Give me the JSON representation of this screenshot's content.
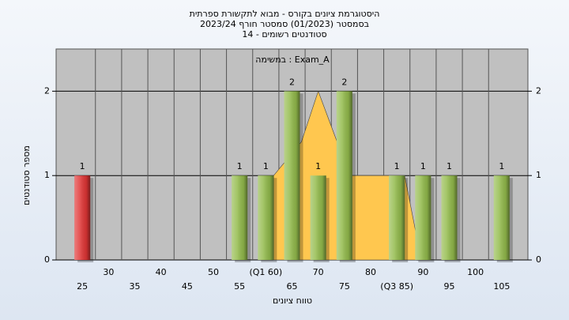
{
  "chart_data": {
    "type": "bar",
    "title": "היסטוגרמת ציונים בקורס - מבוא לתקשורת ספרתית",
    "subtitle": "בסמסטר  (01/2023)  סמסטר חורף  2023/24",
    "subtitle2": "סטודנטים רשומים - 14",
    "annotation": "במשימה : Exam_A",
    "xlabel": "טווח ציונים",
    "ylabel": "מספר סטודנטים",
    "x": [
      25,
      55,
      60,
      65,
      70,
      75,
      85,
      90,
      95,
      105
    ],
    "values": [
      1,
      1,
      1,
      2,
      1,
      2,
      1,
      1,
      1,
      1
    ],
    "colors": [
      "#e03535",
      "#93bb4c",
      "#93bb4c",
      "#93bb4c",
      "#93bb4c",
      "#93bb4c",
      "#93bb4c",
      "#93bb4c",
      "#93bb4c",
      "#93bb4c"
    ],
    "area": {
      "color": "#ffc74f",
      "x": [
        61.5,
        61.5,
        66.8,
        70,
        73.6,
        73.6,
        86.5,
        88.7,
        88.7
      ],
      "values": [
        0,
        1,
        1.4,
        2,
        1.4,
        1,
        1,
        0.3,
        0
      ]
    },
    "xlim": [
      20,
      110
    ],
    "xticks": [
      25,
      30,
      35,
      40,
      45,
      50,
      55,
      {
        "value": 60,
        "label": "(Q1 60)"
      },
      65,
      70,
      75,
      80,
      {
        "value": 85,
        "label": "(Q3 85)"
      },
      90,
      95,
      100,
      105
    ],
    "ylim": [
      0,
      2.5
    ],
    "yticks": [
      0,
      1,
      2
    ],
    "grid": true
  }
}
